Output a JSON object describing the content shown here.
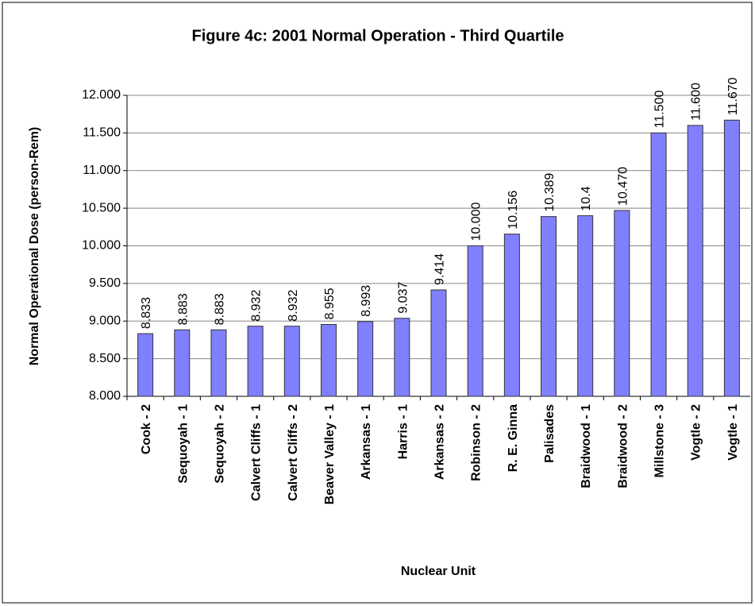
{
  "chart_data": {
    "type": "bar",
    "title": "Figure 4c: 2001 Normal Operation -  Third Quartile",
    "x_label": "Nuclear Unit",
    "y_label": "Normal Operational Dose (person-Rem)",
    "categories": [
      "Cook - 2",
      "Sequoyah - 1",
      "Sequoyah - 2",
      "Calvert Cliffs - 1",
      "Calvert Cliffs - 2",
      "Beaver Valley - 1",
      "Arkansas - 1",
      "Harris - 1",
      "Arkansas - 2",
      "Robinson - 2",
      "R. E. Ginna",
      "Palisades",
      "Braidwood - 1",
      "Braidwood - 2",
      "Millstone - 3",
      "Vogtle - 2",
      "Vogtle - 1"
    ],
    "values": [
      8.833,
      8.883,
      8.883,
      8.932,
      8.932,
      8.955,
      8.993,
      9.037,
      9.414,
      10.0,
      10.156,
      10.389,
      10.4,
      10.47,
      11.5,
      11.6,
      11.67
    ],
    "value_labels": [
      "8.833",
      "8.883",
      "8.883",
      "8.932",
      "8.932",
      "8.955",
      "8.993",
      "9.037",
      "9.414",
      "10.000",
      "10.156",
      "10.389",
      "10.4",
      "10.470",
      "11.500",
      "11.600",
      "11.670"
    ],
    "color": "#8080ff",
    "ylim": [
      8,
      12
    ],
    "yticks": [
      {
        "value": 8,
        "label": "8.000"
      },
      {
        "value": 8.5,
        "label": "8.500"
      },
      {
        "value": 9,
        "label": "9.000"
      },
      {
        "value": 9.5,
        "label": "9.500"
      },
      {
        "value": 10,
        "label": "10.000"
      },
      {
        "value": 10.5,
        "label": "10.500"
      },
      {
        "value": 11,
        "label": "11.000"
      },
      {
        "value": 11.5,
        "label": "11.500"
      },
      {
        "value": 12,
        "label": "12.000"
      }
    ],
    "grid": true
  }
}
